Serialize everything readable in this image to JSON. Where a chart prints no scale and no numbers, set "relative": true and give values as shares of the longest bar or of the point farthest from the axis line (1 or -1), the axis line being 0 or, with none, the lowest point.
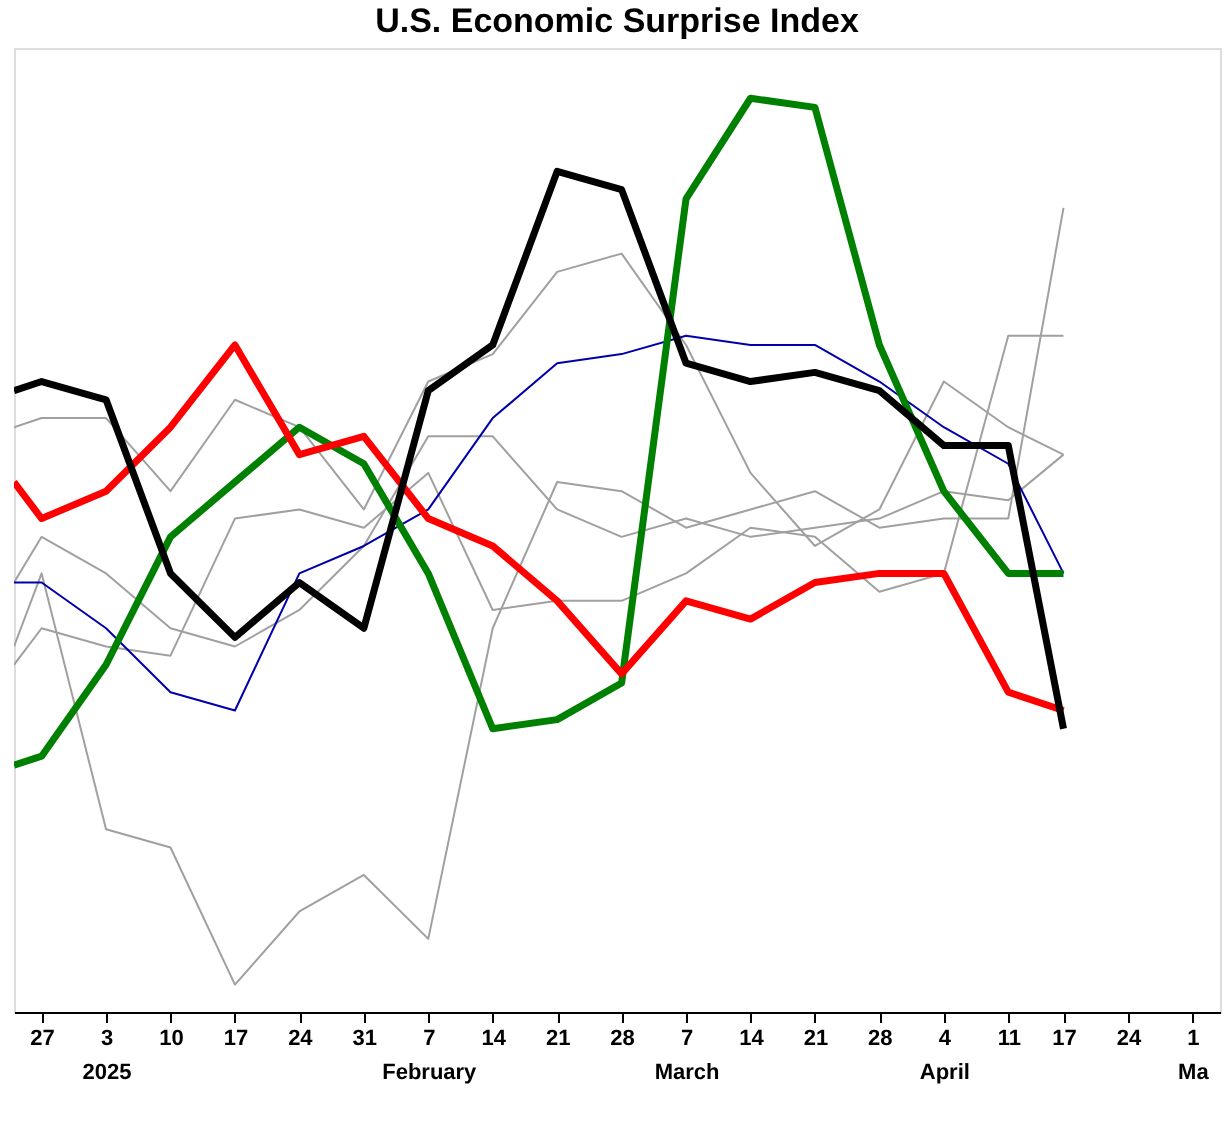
{
  "chart_data": {
    "type": "line",
    "title": "U.S. Economic Surprise Index",
    "relative": true,
    "x": [
      "2024-12-24",
      "2024-12-27",
      "2025-01-03",
      "2025-01-10",
      "2025-01-17",
      "2025-01-24",
      "2025-01-31",
      "2025-02-07",
      "2025-02-14",
      "2025-02-21",
      "2025-02-28",
      "2025-03-07",
      "2025-03-14",
      "2025-03-21",
      "2025-03-28",
      "2025-04-04",
      "2025-04-11",
      "2025-04-17"
    ],
    "xlim": [
      "2024-12-24",
      "2025-05-04"
    ],
    "xticks": [
      {
        "value": "2024-12-27",
        "label": "27"
      },
      {
        "value": "2025-01-03",
        "label": "3\n2025"
      },
      {
        "value": "2025-01-10",
        "label": "10"
      },
      {
        "value": "2025-01-17",
        "label": "17"
      },
      {
        "value": "2025-01-24",
        "label": "24"
      },
      {
        "value": "2025-01-31",
        "label": "31"
      },
      {
        "value": "2025-02-07",
        "label": "7\nFebruary"
      },
      {
        "value": "2025-02-14",
        "label": "14"
      },
      {
        "value": "2025-02-21",
        "label": "21"
      },
      {
        "value": "2025-02-28",
        "label": "28"
      },
      {
        "value": "2025-03-07",
        "label": "7\nMarch"
      },
      {
        "value": "2025-03-14",
        "label": "14"
      },
      {
        "value": "2025-03-21",
        "label": "21"
      },
      {
        "value": "2025-03-28",
        "label": "28"
      },
      {
        "value": "2025-04-04",
        "label": "4\nApril"
      },
      {
        "value": "2025-04-11",
        "label": "11"
      },
      {
        "value": "2025-04-17",
        "label": "17"
      },
      {
        "value": "2025-04-24",
        "label": "24"
      },
      {
        "value": "2025-05-01",
        "label": "1\nMa"
      }
    ],
    "marker": "none",
    "line_style": "solid",
    "tick_labels": "x",
    "series": [
      {
        "color": "#a0a0a0",
        "values": [
          0.64,
          0.65,
          0.65,
          0.57,
          0.67,
          0.64,
          0.55,
          0.69,
          0.72,
          0.81,
          0.83,
          0.73,
          0.59,
          0.51,
          0.55,
          0.69,
          0.64,
          0.61
        ]
      },
      {
        "color": "#a0a0a0",
        "values": [
          0.4,
          0.48,
          0.2,
          0.18,
          0.03,
          0.11,
          0.15,
          0.08,
          0.42,
          0.58,
          0.57,
          0.53,
          0.55,
          0.57,
          0.53,
          0.54,
          0.54,
          0.88
        ]
      },
      {
        "color": "#a0a0a0",
        "values": [
          0.38,
          0.42,
          0.4,
          0.39,
          0.54,
          0.55,
          0.53,
          0.59,
          0.44,
          0.45,
          0.45,
          0.48,
          0.53,
          0.52,
          0.46,
          0.48,
          0.74,
          0.74
        ]
      },
      {
        "color": "#a0a0a0",
        "values": [
          0.47,
          0.52,
          0.48,
          0.42,
          0.4,
          0.44,
          0.51,
          0.63,
          0.63,
          0.55,
          0.52,
          0.54,
          0.52,
          0.53,
          0.54,
          0.57,
          0.56,
          0.61
        ]
      },
      {
        "color": "#0000aa",
        "values": [
          0.47,
          0.47,
          0.42,
          0.35,
          0.33,
          0.48,
          0.51,
          0.55,
          0.65,
          0.71,
          0.72,
          0.74,
          0.73,
          0.73,
          0.69,
          0.64,
          0.6,
          0.48
        ]
      },
      {
        "color": "#008000",
        "values": [
          0.27,
          0.28,
          0.38,
          0.52,
          0.58,
          0.64,
          0.6,
          0.48,
          0.31,
          0.32,
          0.36,
          0.89,
          1.0,
          0.99,
          0.73,
          0.57,
          0.48,
          0.48
        ]
      },
      {
        "color": "#ff0000",
        "values": [
          0.58,
          0.54,
          0.57,
          0.64,
          0.73,
          0.61,
          0.63,
          0.54,
          0.51,
          0.45,
          0.37,
          0.45,
          0.43,
          0.47,
          0.48,
          0.48,
          0.35,
          0.33
        ]
      },
      {
        "color": "#000000",
        "values": [
          0.68,
          0.69,
          0.67,
          0.48,
          0.41,
          0.47,
          0.42,
          0.68,
          0.73,
          0.92,
          0.9,
          0.71,
          0.69,
          0.7,
          0.68,
          0.62,
          0.62,
          0.31
        ]
      }
    ]
  }
}
